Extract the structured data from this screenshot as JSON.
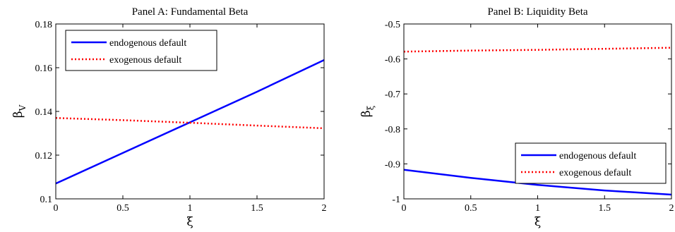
{
  "chart_data": [
    {
      "type": "line",
      "title": "Panel A: Fundamental Beta",
      "xlabel": "ξ",
      "ylabel": "β",
      "ylabel_sub": "V",
      "xlim": [
        0,
        2
      ],
      "ylim": [
        0.1,
        0.18
      ],
      "xticks": [
        0,
        0.5,
        1,
        1.5,
        2
      ],
      "xtick_labels": [
        "0",
        "0.5",
        "1",
        "1.5",
        "2"
      ],
      "yticks": [
        0.1,
        0.12,
        0.14,
        0.16,
        0.18
      ],
      "ytick_labels": [
        "0.1",
        "0.12",
        "0.14",
        "0.16",
        "0.18"
      ],
      "grid": false,
      "legend_position": "top-left",
      "series": [
        {
          "name": "endogenous default",
          "color": "#0000ff",
          "style": "solid",
          "x": [
            0,
            0.5,
            1,
            1.5,
            2
          ],
          "values": [
            0.107,
            0.121,
            0.135,
            0.149,
            0.1635
          ]
        },
        {
          "name": "exogenous default",
          "color": "#ff0000",
          "style": "dotted",
          "x": [
            0,
            0.5,
            1,
            1.5,
            2
          ],
          "values": [
            0.137,
            0.136,
            0.1348,
            0.1335,
            0.1323
          ]
        }
      ]
    },
    {
      "type": "line",
      "title": "Panel B: Liquidity Beta",
      "xlabel": "ξ",
      "ylabel": "β",
      "ylabel_sub": "ξ",
      "xlim": [
        0,
        2
      ],
      "ylim": [
        -1,
        -0.5
      ],
      "xticks": [
        0,
        0.5,
        1,
        1.5,
        2
      ],
      "xtick_labels": [
        "0",
        "0.5",
        "1",
        "1.5",
        "2"
      ],
      "yticks": [
        -1,
        -0.9,
        -0.8,
        -0.7,
        -0.6,
        -0.5
      ],
      "ytick_labels": [
        "-1",
        "-0.9",
        "-0.8",
        "-0.7",
        "-0.6",
        "-0.5"
      ],
      "grid": false,
      "legend_position": "bottom-right",
      "series": [
        {
          "name": "endogenous default",
          "color": "#0000ff",
          "style": "solid",
          "x": [
            0,
            0.5,
            1,
            1.5,
            2
          ],
          "values": [
            -0.917,
            -0.94,
            -0.96,
            -0.976,
            -0.988
          ]
        },
        {
          "name": "exogenous default",
          "color": "#ff0000",
          "style": "dotted",
          "x": [
            0,
            0.5,
            1,
            1.5,
            2
          ],
          "values": [
            -0.579,
            -0.576,
            -0.574,
            -0.571,
            -0.568
          ]
        }
      ]
    }
  ]
}
